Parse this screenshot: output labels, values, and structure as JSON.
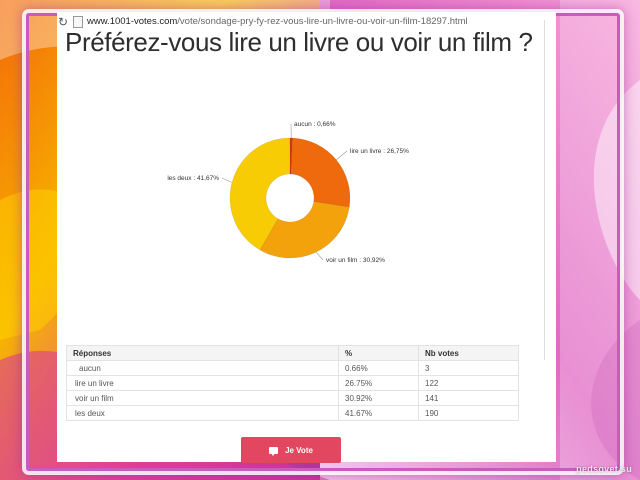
{
  "browser": {
    "url_host": "www.1001-votes.com",
    "url_path": "/vote/sondage-pry-fy-rez-vous-lire-un-livre-ou-voir-un-film-18297.html"
  },
  "poll": {
    "question": "Préférez-vous lire un livre ou voir un film ?"
  },
  "chart_data": {
    "type": "pie",
    "variant": "donut",
    "slices": [
      {
        "label": "aucun : 0,66%",
        "value": 0.66,
        "color": "#d93a0c"
      },
      {
        "label": "lire un livre : 26,75%",
        "value": 26.75,
        "color": "#ee6a0c"
      },
      {
        "label": "voir un film : 30,92%",
        "value": 30.92,
        "color": "#f4a20c"
      },
      {
        "label": "les deux : 41,67%",
        "value": 41.67,
        "color": "#f8cc04"
      }
    ]
  },
  "table": {
    "headers": [
      "Réponses",
      "%",
      "Nb votes"
    ],
    "rows": [
      [
        "aucun",
        "0.66%",
        "3"
      ],
      [
        "lire un livre",
        "26.75%",
        "122"
      ],
      [
        "voir un film",
        "30.92%",
        "141"
      ],
      [
        "les deux",
        "41.67%",
        "190"
      ]
    ]
  },
  "vote_button": {
    "label": "Je Vote",
    "color": "#e2475f"
  },
  "watermark": {
    "text": "pedsovet.su"
  },
  "icons": {
    "reload": "reload-icon",
    "page": "page-icon",
    "vote": "speech-bubble-icon"
  },
  "colors": {
    "frame": "#c95bc0"
  }
}
